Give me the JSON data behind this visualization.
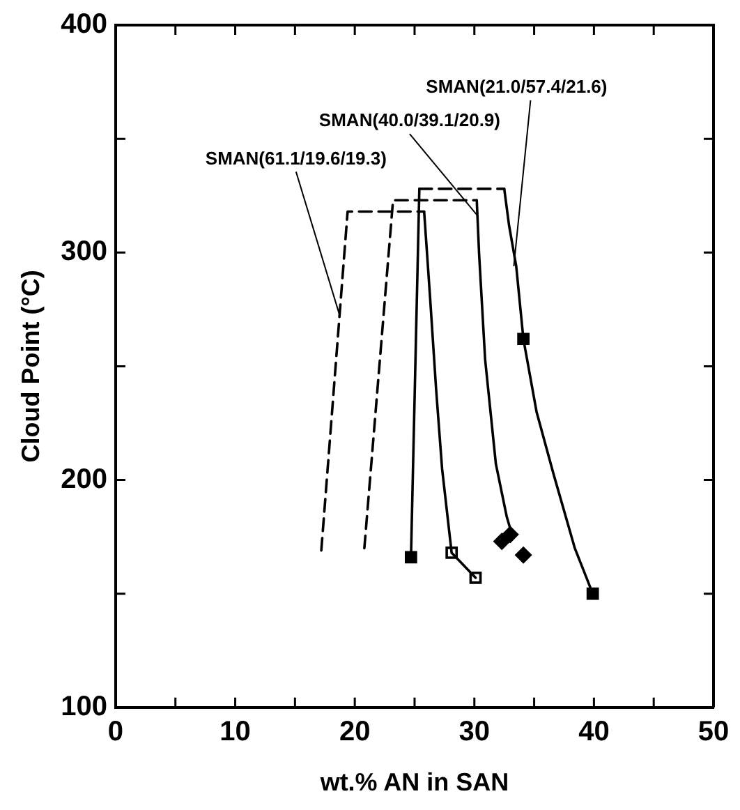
{
  "chart_data": {
    "type": "line",
    "xlabel": "wt.% AN in SAN",
    "ylabel": "Cloud Point (°C)",
    "xlim": [
      0,
      50
    ],
    "ylim": [
      100,
      400
    ],
    "xticks": [
      0,
      {
        "value": 5,
        "label": null
      },
      10,
      {
        "value": 15,
        "label": null
      },
      20,
      {
        "value": 25,
        "label": null
      },
      30,
      {
        "value": 35,
        "label": null
      },
      40,
      {
        "value": 45,
        "label": null
      },
      50
    ],
    "yticks": [
      100,
      {
        "value": 150,
        "label": null
      },
      200,
      {
        "value": 250,
        "label": null
      },
      300,
      {
        "value": 350,
        "label": null
      },
      400
    ],
    "grid": false,
    "legend": false,
    "series": [
      {
        "type": "line",
        "line_style": "dashed",
        "marker": "none",
        "color": "#000000",
        "x": [
          17.2,
          19.4,
          25.8
        ],
        "values": [
          169,
          318,
          318
        ]
      },
      {
        "type": "line",
        "line_style": "solid",
        "marker": "none",
        "color": "#000000",
        "x": [
          25.8,
          26.3,
          26.8,
          27.3,
          28.1,
          30.1
        ],
        "values": [
          318,
          280,
          240,
          205,
          168,
          157
        ]
      },
      {
        "type": "scatter",
        "marker": "square",
        "color": "#ffffff",
        "x": [
          28.1,
          30.1
        ],
        "values": [
          168,
          157
        ]
      },
      {
        "type": "line",
        "line_style": "dashed",
        "marker": "none",
        "color": "#000000",
        "x": [
          20.8,
          23.2,
          30.2
        ],
        "values": [
          170,
          323,
          323
        ]
      },
      {
        "type": "line",
        "line_style": "solid",
        "marker": "none",
        "color": "#000000",
        "x": [
          30.2,
          30.4,
          30.9,
          31.8,
          32.7,
          33.2
        ],
        "values": [
          323,
          299,
          253,
          207,
          184,
          175
        ]
      },
      {
        "type": "scatter",
        "marker": "diamond",
        "color": "#000000",
        "x": [
          32.3,
          33.0,
          34.1
        ],
        "values": [
          173,
          176,
          167
        ]
      },
      {
        "type": "line",
        "line_style": "solid",
        "marker": "none",
        "color": "#000000",
        "x": [
          24.7,
          25.4
        ],
        "values": [
          166,
          328
        ]
      },
      {
        "type": "line",
        "line_style": "dashed",
        "marker": "none",
        "color": "#000000",
        "x": [
          25.4,
          32.5
        ],
        "values": [
          328,
          328
        ]
      },
      {
        "type": "line",
        "line_style": "solid",
        "marker": "none",
        "color": "#000000",
        "x": [
          32.5,
          32.9,
          33.5,
          34.1,
          35.2,
          36.6,
          38.4,
          39.9
        ],
        "values": [
          328,
          312,
          294,
          262,
          230,
          203,
          170,
          150
        ]
      },
      {
        "type": "scatter",
        "marker": "square",
        "color": "#000000",
        "x": [
          24.7,
          34.1,
          39.9
        ],
        "values": [
          166,
          262,
          150
        ]
      }
    ],
    "annotations": [
      {
        "text": "SMAN(61.1/19.6/19.3)",
        "x": 18.7,
        "y": 273
      },
      {
        "text": "SMAN(40.0/39.1/20.9)",
        "x": 30.3,
        "y": 316
      },
      {
        "text": "SMAN(21.0/57.4/21.6)",
        "x": 33.3,
        "y": 294
      }
    ]
  }
}
